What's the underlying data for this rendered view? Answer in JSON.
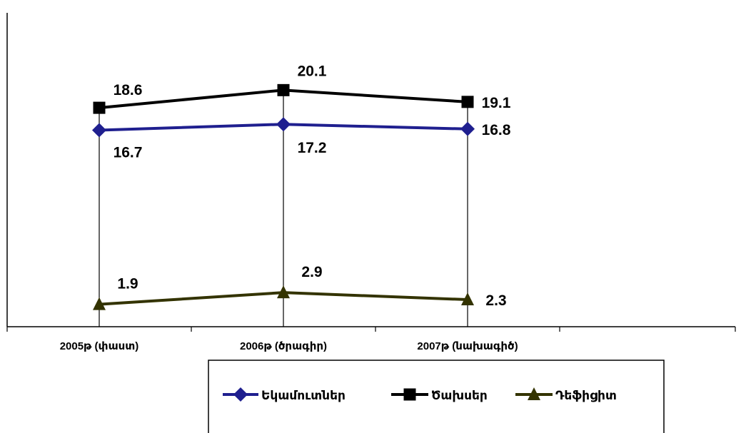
{
  "chart_data": {
    "type": "line",
    "title": "",
    "xlabel": "",
    "ylabel": "",
    "categories": [
      "2005թ (փաստ)",
      "2006թ (ծրագիր)",
      "2007թ (նախագիծ)"
    ],
    "series": [
      {
        "name": "Եկամուտներ",
        "values": [
          16.7,
          17.2,
          16.8
        ],
        "color": "#1f1f8f",
        "marker": "diamond",
        "value_labels": [
          "16.7",
          "17.2",
          "16.8"
        ]
      },
      {
        "name": "Ծախսեր",
        "values": [
          18.6,
          20.1,
          19.1
        ],
        "color": "#000000",
        "marker": "square",
        "value_labels": [
          "18.6",
          "20.1",
          "19.1"
        ]
      },
      {
        "name": "Դեֆիցիտ",
        "values": [
          1.9,
          2.9,
          2.3
        ],
        "color": "#333300",
        "marker": "triangle",
        "value_labels": [
          "1.9",
          "2.9",
          "2.3"
        ]
      }
    ],
    "ylim": [
      0,
      22
    ],
    "grid": false,
    "drop_lines": true,
    "legend_position": "bottom"
  }
}
